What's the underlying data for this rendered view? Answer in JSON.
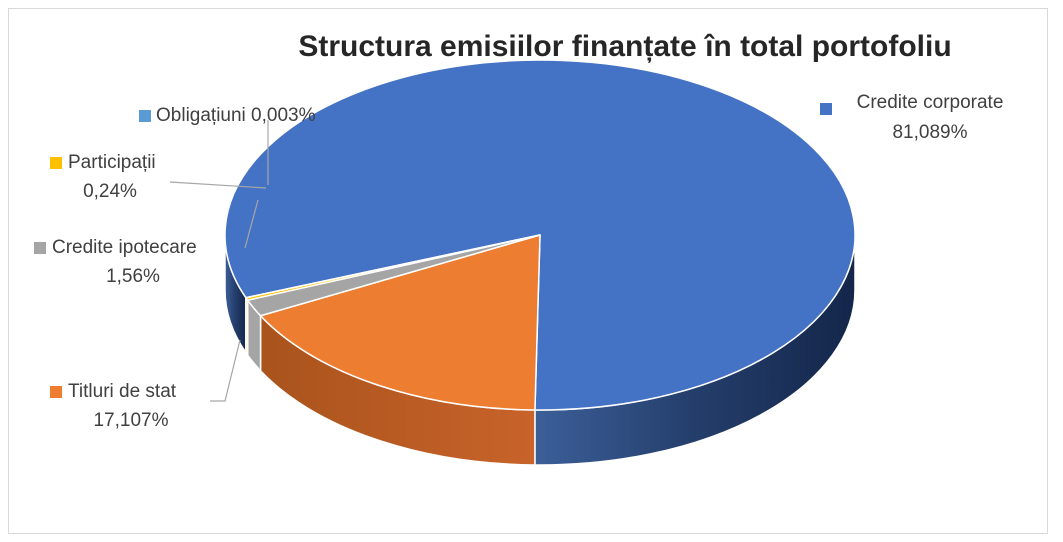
{
  "chart_data": {
    "type": "pie",
    "title": "Structura emisiilor finanțate în total portofoliu",
    "legend": "labels with leader lines",
    "slices": [
      {
        "name": "Credite corporate",
        "value": 81.089,
        "label": "81,089%",
        "color": "#4472C4"
      },
      {
        "name": "Titluri de stat",
        "value": 17.107,
        "label": "17,107%",
        "color": "#ED7D31"
      },
      {
        "name": "Credite ipotecare",
        "value": 1.56,
        "label": "1,56%",
        "color": "#A5A5A5"
      },
      {
        "name": "Participații",
        "value": 0.24,
        "label": "0,24%",
        "color": "#FFC000"
      },
      {
        "name": "Obligațiuni",
        "value": 0.003,
        "label": "0,003%",
        "color": "#5B9BD5"
      }
    ]
  }
}
